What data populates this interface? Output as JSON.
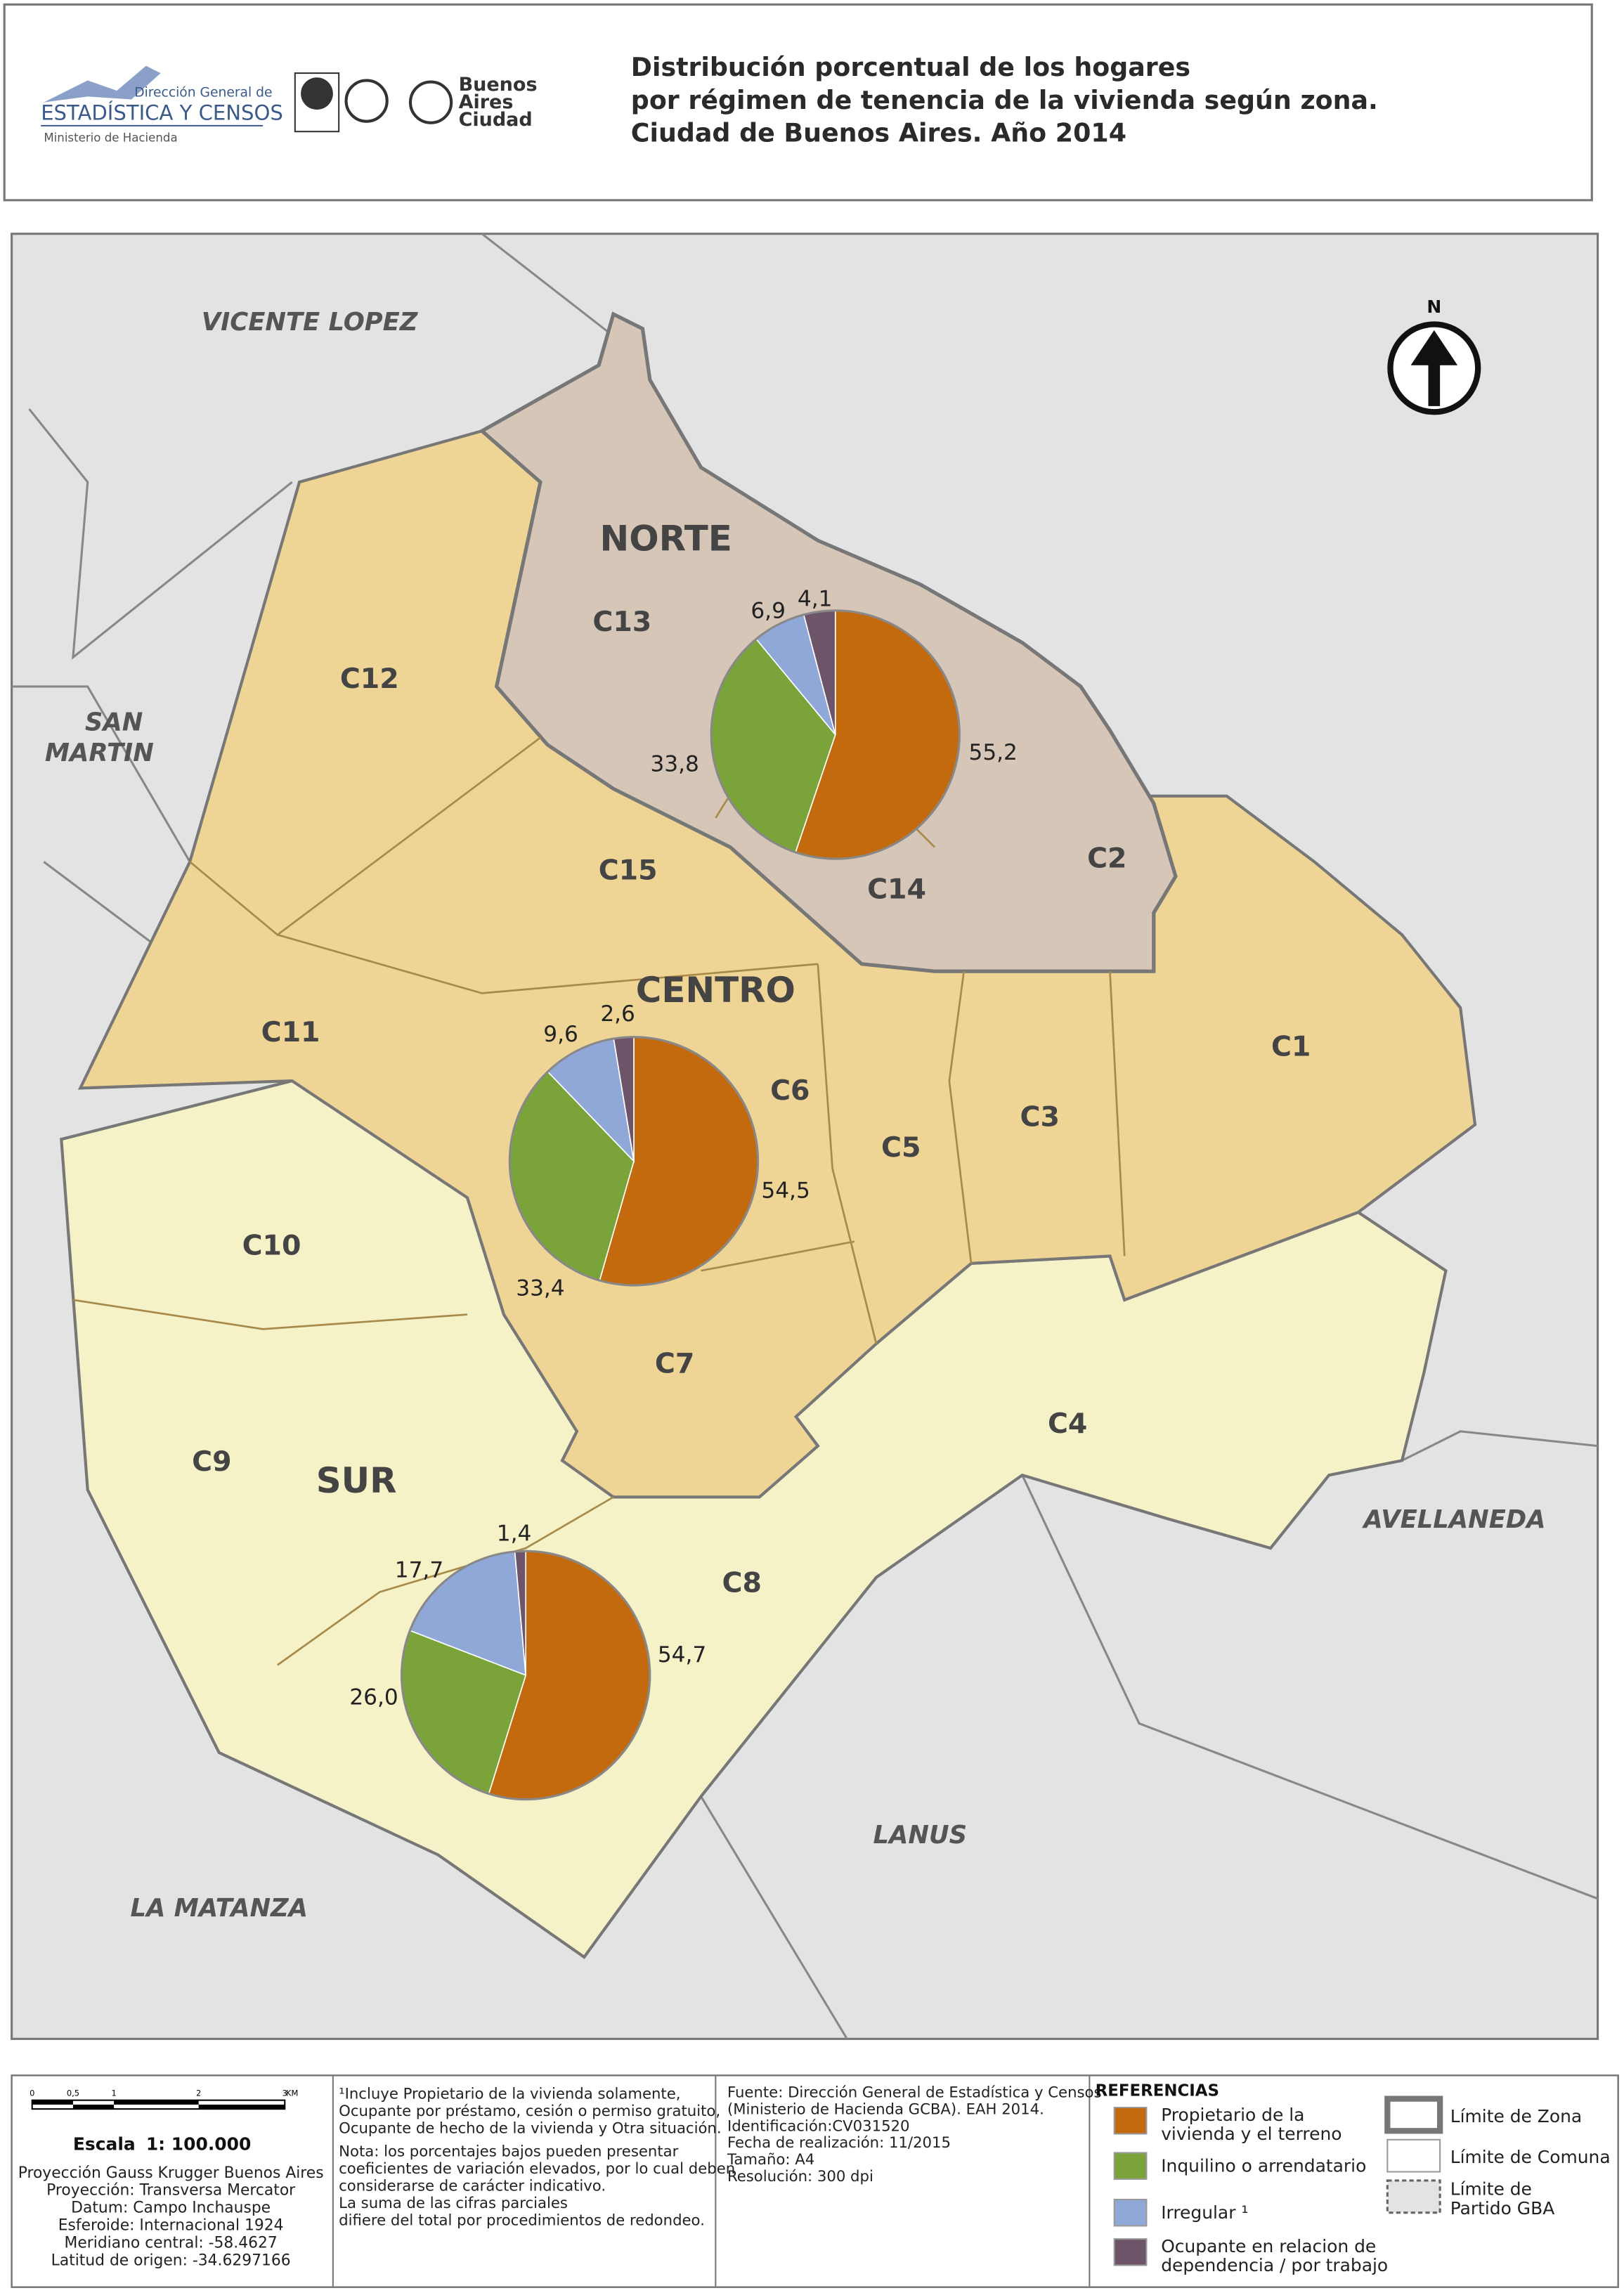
{
  "header": {
    "title": [
      "Distribución porcentual de los hogares",
      "por régimen de tenencia de la vivienda según zona.",
      "Ciudad de Buenos Aires. Año 2014"
    ],
    "logo_dgec": [
      "Dirección General de",
      "ESTADÍSTICA Y CENSOS",
      "Ministerio de Hacienda"
    ],
    "logo_ba": [
      "Buenos",
      "Aires",
      "Ciudad"
    ]
  },
  "map": {
    "north": "N",
    "neighbors": [
      [
        "VICENTE LOPEZ"
      ],
      [
        "SAN",
        "MARTIN"
      ],
      [
        "AVELLANEDA"
      ],
      [
        "LANUS"
      ],
      [
        "LA MATANZA"
      ]
    ],
    "comunas": [
      "C13",
      "C12",
      "C15",
      "C14",
      "C2",
      "C11",
      "C6",
      "C1",
      "C5",
      "C3",
      "C10",
      "C7",
      "C4",
      "C9",
      "C8"
    ]
  },
  "pies": [
    {
      "zone": "NORTE",
      "values": [
        55.2,
        33.8,
        6.9,
        4.1
      ],
      "value_labels": [
        "55,2",
        "33,8",
        "6,9",
        "4,1"
      ]
    },
    {
      "zone": "CENTRO",
      "values": [
        54.5,
        33.4,
        9.6,
        2.6
      ],
      "value_labels": [
        "54,5",
        "33,4",
        "9,6",
        "2,6"
      ]
    },
    {
      "zone": "SUR",
      "values": [
        54.7,
        26.0,
        17.7,
        1.4
      ],
      "value_labels": [
        "54,7",
        "26,0",
        "17,7",
        "1,4"
      ]
    }
  ],
  "legend": {
    "title": "REFERENCIAS",
    "items": [
      {
        "name": [
          "Propietario de la",
          "vivienda y el terreno"
        ],
        "color": "#c46a0e"
      },
      {
        "name": [
          "Inquilino o arrendatario"
        ],
        "color": "#7aa33a"
      },
      {
        "name": [
          "Irregular ¹"
        ],
        "color": "#8fa8d8"
      },
      {
        "name": [
          "Ocupante en relacion de",
          "dependencia / por trabajo"
        ],
        "color": "#6e5468"
      }
    ],
    "boundaries": [
      [
        "Límite de Zona"
      ],
      [
        "Límite de Comuna"
      ],
      [
        "Límite de",
        "Partido GBA"
      ]
    ]
  },
  "footer": {
    "scale_ticks": [
      "0",
      "0,5",
      "1",
      "2",
      "3",
      "KM"
    ],
    "scale": [
      "Escala",
      "1: 100.000"
    ],
    "projection": [
      "Proyección Gauss Krugger Buenos Aires",
      "Proyección: Transversa Mercator",
      "Datum: Campo Inchauspe",
      "Esferoide: Internacional 1924",
      "Meridiano central: -58.4627",
      "Latitud de origen: -34.6297166"
    ],
    "notes": [
      "¹Incluye Propietario de la vivienda solamente,",
      "Ocupante por préstamo, cesión o permiso gratuito,",
      "Ocupante de hecho de la vivienda y Otra situación.",
      "Nota:  los porcentajes bajos pueden presentar",
      "coeficientes de variación elevados, por lo cual deben",
      "considerarse de carácter indicativo.",
      "La suma de las cifras parciales",
      "difiere del total por procedimientos de redondeo."
    ],
    "source": [
      "Fuente: Dirección General de Estadística y Censos",
      "(Ministerio de Hacienda GCBA). EAH 2014.",
      "Identificación:CV031520",
      "Fecha de realización: 11/2015",
      "Tamaño: A4",
      "Resolución: 300 dpi"
    ]
  }
}
